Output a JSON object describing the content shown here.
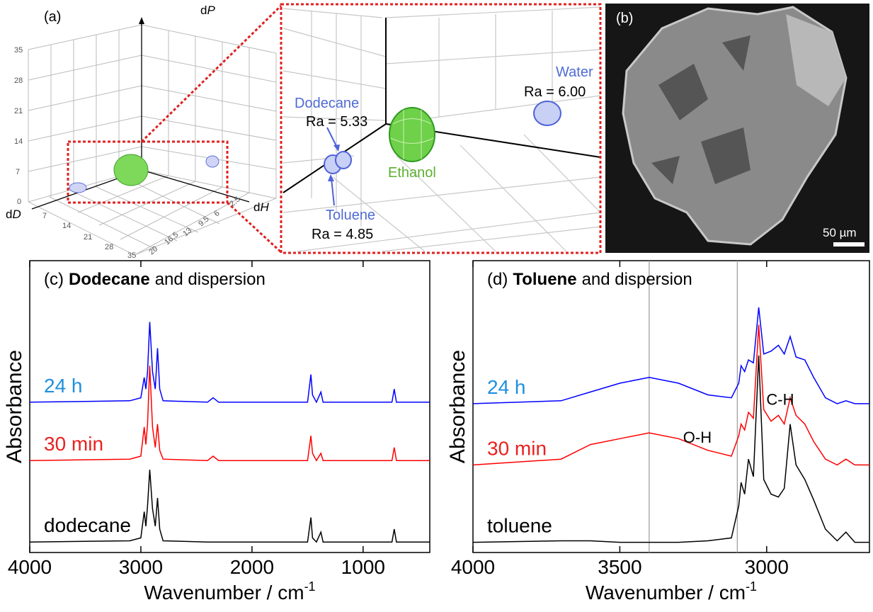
{
  "figure": {
    "panel_a": {
      "label": "(a)",
      "axis_p": {
        "prefix": "d",
        "var": "P"
      },
      "axis_d": {
        "prefix": "d",
        "var": "D"
      },
      "axis_h": {
        "prefix": "d",
        "var": "H"
      },
      "p_ticks": [
        35,
        28,
        21,
        14,
        7,
        0
      ],
      "d_ticks": [
        7,
        14,
        21,
        28,
        35
      ],
      "h_ticks": [
        20,
        16.5,
        13,
        9.5,
        6,
        2.5
      ],
      "solvents": [
        {
          "name": "Water",
          "ra": "Ra = 6.00"
        },
        {
          "name": "Dodecane",
          "ra": "Ra = 5.33"
        },
        {
          "name": "Toluene",
          "ra": "Ra = 4.85"
        },
        {
          "name": "Ethanol"
        }
      ]
    },
    "panel_b": {
      "label": "(b)",
      "scale_bar": "50 µm"
    }
  },
  "chart_data": [
    {
      "type": "line",
      "panel_label": "(c)",
      "title_bold": "Dodecane",
      "title_rest": "and dispersion",
      "xlabel": "Wavenumber / cm",
      "xlabel_sup": "-1",
      "ylabel": "Absorbance",
      "x": [
        4000,
        3100,
        3000,
        2970,
        2955,
        2940,
        2920,
        2895,
        2870,
        2850,
        2830,
        2800,
        2400,
        2350,
        2300,
        1500,
        1470,
        1455,
        1420,
        1380,
        1360,
        1300,
        800,
        740,
        720,
        700,
        400
      ],
      "xlim": [
        4000,
        400
      ],
      "xticks": [
        4000,
        3000,
        2000,
        1000
      ],
      "ylim": [
        0,
        10
      ],
      "series": [
        {
          "name": "24 h",
          "color": "#0000ff",
          "label_color": "#1f8fdf",
          "values": [
            5.15,
            5.2,
            5.3,
            6.0,
            5.6,
            6.2,
            7.9,
            6.2,
            5.6,
            7.0,
            5.6,
            5.2,
            5.15,
            5.3,
            5.15,
            5.15,
            6.1,
            5.4,
            5.15,
            5.5,
            5.15,
            5.15,
            5.15,
            5.15,
            5.6,
            5.15,
            5.15
          ]
        },
        {
          "name": "30 min",
          "color": "#ff0000",
          "label_color": "#e8221f",
          "values": [
            3.15,
            3.2,
            3.3,
            4.3,
            3.7,
            4.4,
            6.4,
            4.3,
            3.6,
            4.4,
            3.5,
            3.2,
            3.15,
            3.3,
            3.15,
            3.15,
            4.0,
            3.4,
            3.15,
            3.4,
            3.15,
            3.15,
            3.15,
            3.15,
            3.6,
            3.15,
            3.15
          ]
        },
        {
          "name": "dodecane",
          "color": "#000000",
          "label_color": "#000000",
          "values": [
            0.36,
            0.4,
            0.5,
            1.4,
            0.9,
            1.6,
            2.84,
            1.5,
            0.9,
            1.87,
            0.8,
            0.4,
            0.36,
            0.36,
            0.36,
            0.36,
            1.2,
            0.5,
            0.36,
            0.7,
            0.36,
            0.36,
            0.36,
            0.36,
            0.8,
            0.36,
            0.36
          ]
        }
      ]
    },
    {
      "type": "line",
      "panel_label": "(d)",
      "title_bold": "Toluene",
      "title_rest": "and dispersion",
      "xlabel": "Wavenumber / cm",
      "xlabel_sup": "-1",
      "ylabel": "Absorbance",
      "x": [
        4000,
        3700,
        3600,
        3500,
        3400,
        3300,
        3200,
        3120,
        3095,
        3087,
        3075,
        3062,
        3045,
        3027,
        3010,
        2985,
        2960,
        2940,
        2920,
        2900,
        2870,
        2840,
        2800,
        2760,
        2730,
        2700,
        2650
      ],
      "xlim": [
        4000,
        2650
      ],
      "xticks": [
        4000,
        3500,
        3000
      ],
      "ylim": [
        0,
        10
      ],
      "vlines": [
        3400,
        3100
      ],
      "annotations": [
        "O-H",
        "C-H"
      ],
      "series": [
        {
          "name": "24 h",
          "color": "#0000ff",
          "label_color": "#1f8fdf",
          "values": [
            5.1,
            5.2,
            5.5,
            5.8,
            6.0,
            5.8,
            5.4,
            5.3,
            5.8,
            6.4,
            6.2,
            6.6,
            6.5,
            8.4,
            6.8,
            6.9,
            7.1,
            6.8,
            7.4,
            6.7,
            6.6,
            6.0,
            5.3,
            5.1,
            5.2,
            5.1,
            5.1
          ]
        },
        {
          "name": "30 min",
          "color": "#ff0000",
          "label_color": "#e8221f",
          "values": [
            3.0,
            3.2,
            3.7,
            3.9,
            4.1,
            3.9,
            3.5,
            3.3,
            4.0,
            4.4,
            4.2,
            4.8,
            4.6,
            7.8,
            4.9,
            4.5,
            4.7,
            4.4,
            5.3,
            4.7,
            4.4,
            3.8,
            3.2,
            3.0,
            3.2,
            3.0,
            3.0
          ]
        },
        {
          "name": "toluene",
          "color": "#000000",
          "label_color": "#000000",
          "values": [
            0.35,
            0.4,
            0.4,
            0.35,
            0.35,
            0.35,
            0.4,
            0.5,
            1.6,
            2.4,
            2.0,
            3.2,
            2.6,
            6.75,
            2.5,
            2.0,
            1.9,
            2.2,
            4.4,
            3.0,
            2.5,
            1.8,
            0.8,
            0.4,
            0.7,
            0.35,
            0.35
          ]
        }
      ]
    }
  ]
}
